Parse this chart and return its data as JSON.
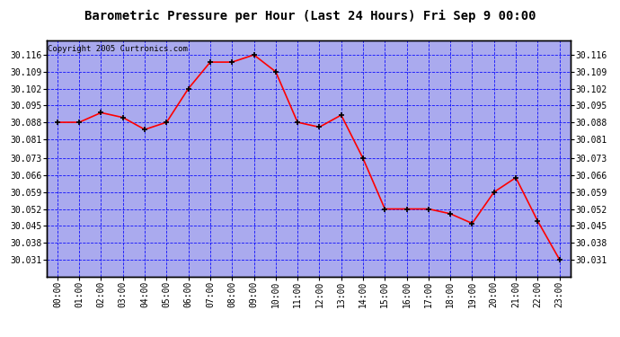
{
  "title": "Barometric Pressure per Hour (Last 24 Hours) Fri Sep 9 00:00",
  "copyright": "Copyright 2005 Curtronics.com",
  "hours": [
    0,
    1,
    2,
    3,
    4,
    5,
    6,
    7,
    8,
    9,
    10,
    11,
    12,
    13,
    14,
    15,
    16,
    17,
    18,
    19,
    20,
    21,
    22,
    23
  ],
  "x_labels": [
    "00:00",
    "01:00",
    "02:00",
    "03:00",
    "04:00",
    "05:00",
    "06:00",
    "07:00",
    "08:00",
    "09:00",
    "10:00",
    "11:00",
    "12:00",
    "13:00",
    "14:00",
    "15:00",
    "16:00",
    "17:00",
    "18:00",
    "19:00",
    "20:00",
    "21:00",
    "22:00",
    "23:00"
  ],
  "pressure": [
    30.088,
    30.088,
    30.092,
    30.09,
    30.085,
    30.088,
    30.102,
    30.113,
    30.113,
    30.116,
    30.109,
    30.088,
    30.086,
    30.091,
    30.073,
    30.052,
    30.052,
    30.052,
    30.05,
    30.046,
    30.059,
    30.065,
    30.047,
    30.031
  ],
  "y_ticks": [
    30.031,
    30.038,
    30.045,
    30.052,
    30.059,
    30.066,
    30.073,
    30.081,
    30.088,
    30.095,
    30.102,
    30.109,
    30.116
  ],
  "ylim_min": 30.024,
  "ylim_max": 30.122,
  "line_color": "red",
  "marker_color": "black",
  "bg_color": "#aaaaee",
  "grid_color": "blue",
  "title_color": "black",
  "title_fontsize": 10,
  "copyright_fontsize": 6.5,
  "tick_fontsize": 7
}
